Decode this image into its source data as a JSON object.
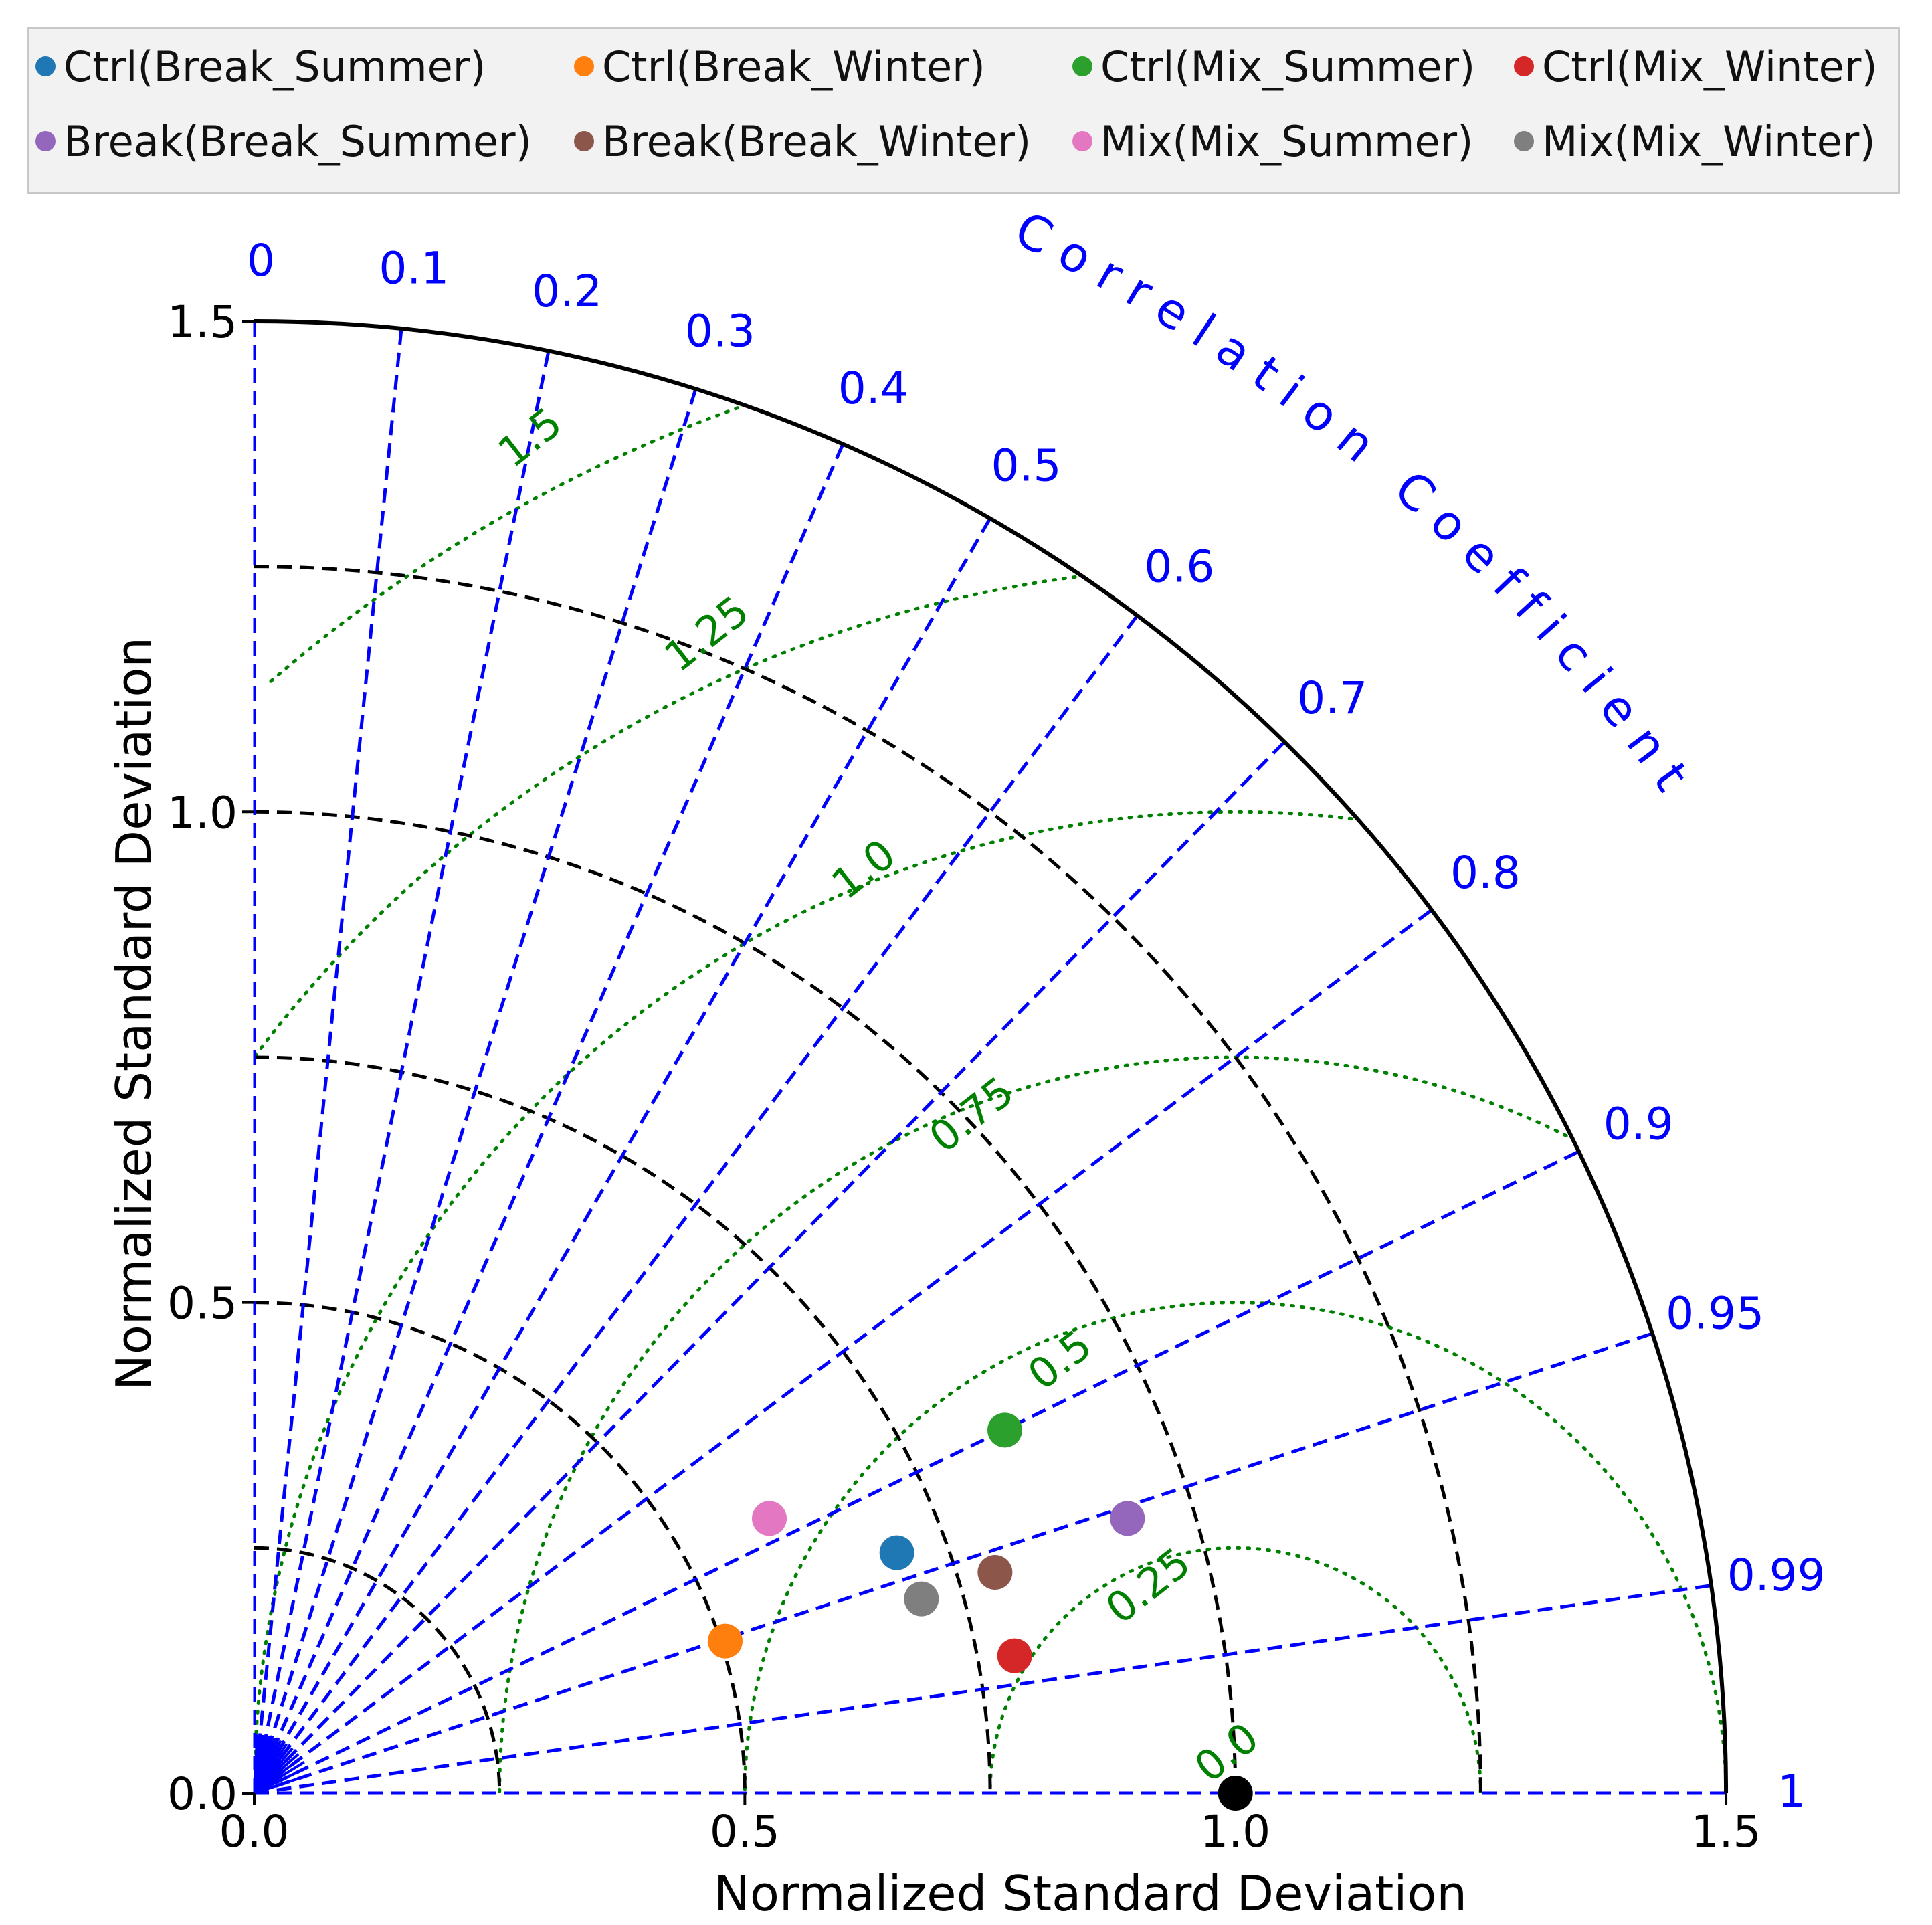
{
  "chart_data": {
    "type": "scatter",
    "subtype": "taylor-diagram",
    "legend": [
      {
        "name": "Ctrl(Break_Summer)",
        "color": "#1f77b4"
      },
      {
        "name": "Ctrl(Break_Winter)",
        "color": "#ff7f0e"
      },
      {
        "name": "Ctrl(Mix_Summer)",
        "color": "#2ca02c"
      },
      {
        "name": "Ctrl(Mix_Winter)",
        "color": "#d62728"
      },
      {
        "name": "Break(Break_Summer)",
        "color": "#9467bd"
      },
      {
        "name": "Break(Break_Winter)",
        "color": "#8c564b"
      },
      {
        "name": "Mix(Mix_Summer)",
        "color": "#e377c2"
      },
      {
        "name": "Mix(Mix_Winter)",
        "color": "#7f7f7f"
      }
    ],
    "points": [
      {
        "name": "Ctrl(Break_Summer)",
        "x": 0.655,
        "y": 0.245,
        "color": "#1f77b4"
      },
      {
        "name": "Ctrl(Break_Winter)",
        "x": 0.48,
        "y": 0.155,
        "color": "#ff7f0e"
      },
      {
        "name": "Ctrl(Mix_Summer)",
        "x": 0.765,
        "y": 0.37,
        "color": "#2ca02c"
      },
      {
        "name": "Ctrl(Mix_Winter)",
        "x": 0.775,
        "y": 0.14,
        "color": "#d62728"
      },
      {
        "name": "Break(Break_Summer)",
        "x": 0.89,
        "y": 0.28,
        "color": "#9467bd"
      },
      {
        "name": "Break(Break_Winter)",
        "x": 0.755,
        "y": 0.225,
        "color": "#8c564b"
      },
      {
        "name": "Mix(Mix_Summer)",
        "x": 0.525,
        "y": 0.28,
        "color": "#e377c2"
      },
      {
        "name": "Mix(Mix_Winter)",
        "x": 0.68,
        "y": 0.198,
        "color": "#7f7f7f"
      }
    ],
    "reference": {
      "x": 1.0,
      "y": 0.0,
      "color": "#000000"
    },
    "xlabel": "Normalized Standard Deviation",
    "ylabel": "Normalized Standard Deviation",
    "corr_label": "Correlation Coefficient",
    "max_std": 1.5,
    "std_ticks": [
      0.0,
      0.5,
      1.0,
      1.5
    ],
    "x_tick_labels": [
      "0.0",
      "0.5",
      "1.0",
      "1.5"
    ],
    "y_tick_labels": [
      "0.0",
      "0.5",
      "1.0",
      "1.5"
    ],
    "std_arcs": [
      0.25,
      0.5,
      0.75,
      1.0,
      1.25
    ],
    "corr_ticks": [
      0,
      0.1,
      0.2,
      0.3,
      0.4,
      0.5,
      0.6,
      0.7,
      0.8,
      0.9,
      0.95,
      0.99,
      1
    ],
    "corr_tick_labels": [
      "0",
      "0.1",
      "0.2",
      "0.3",
      "0.4",
      "0.5",
      "0.6",
      "0.7",
      "0.8",
      "0.9",
      "0.95",
      "0.99",
      "1"
    ],
    "rms_contours": [
      0.25,
      0.5,
      0.75,
      1.0,
      1.25,
      1.5
    ],
    "rms_labels": [
      {
        "text": "0.0",
        "value": 0.0
      },
      {
        "text": "0.25",
        "value": 0.25
      },
      {
        "text": "0.5",
        "value": 0.5
      },
      {
        "text": "0.75",
        "value": 0.75
      },
      {
        "text": "1.0",
        "value": 1.0
      },
      {
        "text": "1.25",
        "value": 1.25
      },
      {
        "text": "1.5",
        "value": 1.5
      }
    ],
    "colors": {
      "corr": "#0000ff",
      "rms": "#008000",
      "std": "#000000"
    }
  }
}
